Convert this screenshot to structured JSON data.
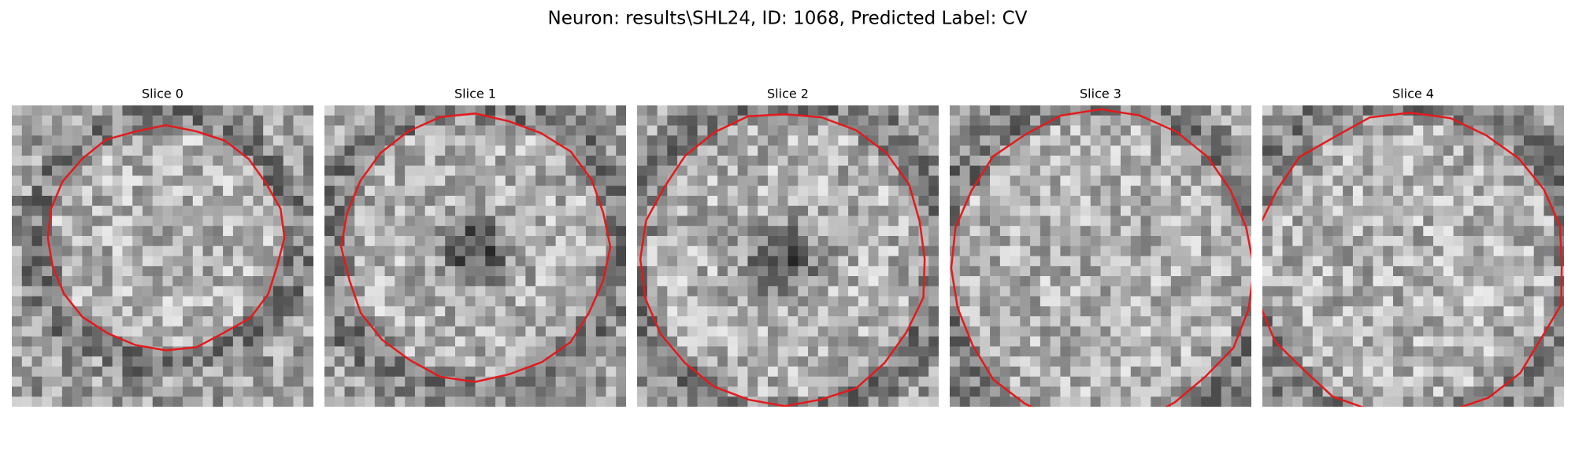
{
  "title": "Neuron: results\\SHL24, ID: 1068, Predicted Label: CV",
  "panels": [
    {
      "title": "Slice 0"
    },
    {
      "title": "Slice 1"
    },
    {
      "title": "Slice 2"
    },
    {
      "title": "Slice 3"
    },
    {
      "title": "Slice 4"
    }
  ]
}
